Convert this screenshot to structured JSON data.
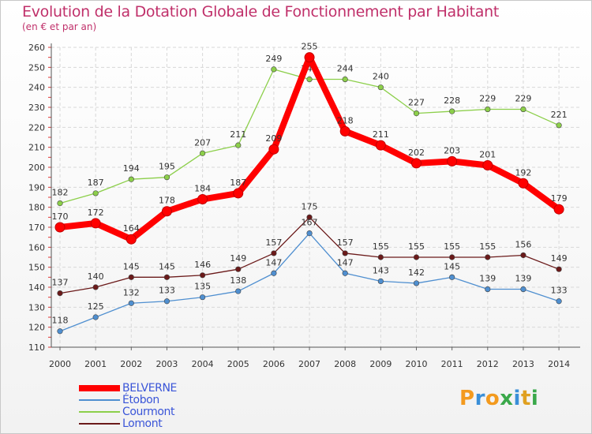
{
  "chart_data": {
    "type": "line",
    "title": "Evolution de la Dotation Globale de Fonctionnement par Habitant",
    "subtitle": "(en € et par an)",
    "xlabel": "",
    "ylabel": "",
    "x": [
      "2000",
      "2001",
      "2002",
      "2003",
      "2004",
      "2005",
      "2006",
      "2007",
      "2008",
      "2009",
      "2010",
      "2011",
      "2012",
      "2013",
      "2014"
    ],
    "ylim": [
      110,
      260
    ],
    "yticks": [
      110,
      120,
      130,
      140,
      150,
      160,
      170,
      180,
      190,
      200,
      210,
      220,
      230,
      240,
      250,
      260
    ],
    "series": [
      {
        "name": "Courmont",
        "color": "#8ccf4a",
        "values": [
          182,
          187,
          194,
          195,
          207,
          211,
          249,
          244,
          244,
          240,
          227,
          228,
          229,
          229,
          221
        ]
      },
      {
        "name": "Lomont",
        "color": "#6b1a1a",
        "values": [
          137,
          140,
          145,
          145,
          146,
          149,
          157,
          175,
          157,
          155,
          155,
          155,
          155,
          156,
          149
        ]
      },
      {
        "name": "Étobon",
        "color": "#4f8fd0",
        "values": [
          118,
          125,
          132,
          133,
          135,
          138,
          147,
          167,
          147,
          143,
          142,
          145,
          139,
          139,
          133
        ]
      },
      {
        "name": "BELVERNE",
        "color": "#ff0000",
        "values": [
          170,
          172,
          164,
          178,
          184,
          187,
          209,
          255,
          218,
          211,
          202,
          203,
          201,
          192,
          179
        ]
      }
    ],
    "legend": [
      "BELVERNE",
      "Étobon",
      "Courmont",
      "Lomont"
    ]
  },
  "brand": {
    "logo_letters": [
      "P",
      "r",
      "o",
      "x",
      "i",
      "t",
      "i"
    ],
    "logo_colors": [
      "#f39a1e",
      "#3a8fd8",
      "#f39a1e",
      "#3aa84a",
      "#3a8fd8",
      "#e0a020",
      "#3aa84a"
    ]
  }
}
